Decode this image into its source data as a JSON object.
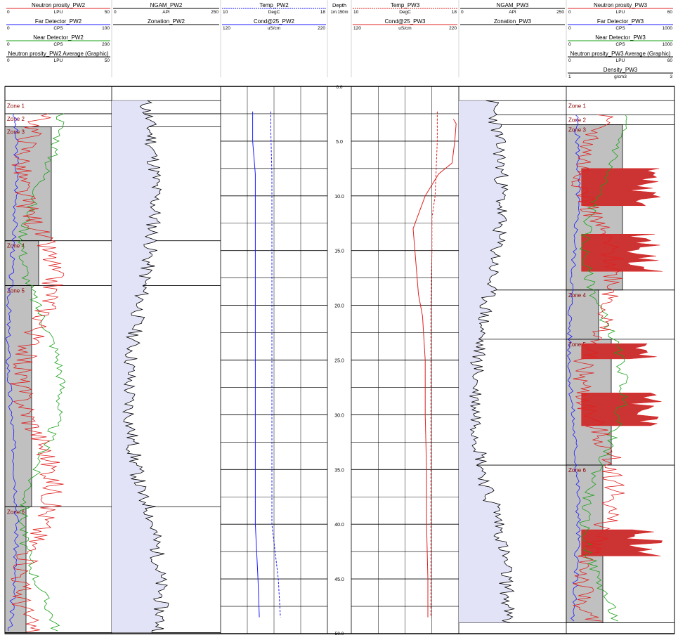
{
  "tracks": [
    {
      "id": "pw2-neutron",
      "header": [
        {
          "name": "Neutron prosity_PW2",
          "unit": "LPU",
          "min": "0",
          "max": "50",
          "color": "#e02020"
        },
        {
          "name": "Far Detector_PW2",
          "unit": "CPS",
          "min": "0",
          "max": "100",
          "color": "#1a1aff"
        },
        {
          "name": "Near Detector_PW2",
          "unit": "CPS",
          "min": "0",
          "max": "200",
          "color": "#19a019"
        },
        {
          "name": "Neutron prosity_PW2 Average (Graphic)",
          "unit": "LPU",
          "min": "0",
          "max": "50",
          "color": "#000000"
        }
      ]
    },
    {
      "id": "pw2-ngam",
      "header": [
        {
          "name": "NGAM_PW2",
          "unit": "API",
          "min": "0",
          "max": "250",
          "color": "#000000"
        },
        {
          "name": "Zonation_PW2",
          "unit": "",
          "min": "",
          "max": "",
          "color": "#000000"
        }
      ]
    },
    {
      "id": "pw2-temp",
      "header": [
        {
          "name": "Temp_PW2",
          "unit": "DegC",
          "min": "10",
          "max": "18",
          "color": "#1a1aff"
        },
        {
          "name": "Cond@25_PW2",
          "unit": "uS/cm",
          "min": "120",
          "max": "220",
          "color": "#1a1aff"
        }
      ]
    },
    {
      "id": "depth",
      "header": [
        {
          "name": "Depth",
          "unit": "1m:150m",
          "min": "",
          "max": "",
          "color": "#000000"
        }
      ]
    },
    {
      "id": "pw3-temp",
      "header": [
        {
          "name": "Temp_PW3",
          "unit": "DegC",
          "min": "10",
          "max": "18",
          "color": "#e02020"
        },
        {
          "name": "Cond@25_PW3",
          "unit": "uS/cm",
          "min": "120",
          "max": "220",
          "color": "#e02020"
        }
      ]
    },
    {
      "id": "pw3-ngam",
      "header": [
        {
          "name": "NGAM_PW3",
          "unit": "API",
          "min": "0",
          "max": "250",
          "color": "#000000"
        },
        {
          "name": "Zonation_PW3",
          "unit": "",
          "min": "",
          "max": "",
          "color": "#000000"
        }
      ]
    },
    {
      "id": "pw3-neutron",
      "header": [
        {
          "name": "Neutron prosity_PW3",
          "unit": "LPU",
          "min": "0",
          "max": "60",
          "color": "#e02020"
        },
        {
          "name": "Far Detector_PW3",
          "unit": "CPS",
          "min": "0",
          "max": "1000",
          "color": "#1a1aff"
        },
        {
          "name": "Near Detector_PW3",
          "unit": "CPS",
          "min": "0",
          "max": "1000",
          "color": "#19a019"
        },
        {
          "name": "Neutron prosity_PW3 Average (Graphic)",
          "unit": "LPU",
          "min": "0",
          "max": "60",
          "color": "#000000"
        },
        {
          "name": "Density_PW3",
          "unit": "g/cm3",
          "min": "1",
          "max": "3",
          "color": "#000000"
        }
      ]
    }
  ],
  "chart_data": {
    "type": "well-log",
    "depth_axis": {
      "unit": "m",
      "scale": "1m:150m",
      "range": [
        0,
        50
      ],
      "ticks": [
        5.0,
        10.0,
        15.0,
        20.0,
        25.0,
        30.0,
        35.0,
        40.0,
        45.0
      ],
      "top_label": "0.0",
      "bottom_label": "50.0"
    },
    "zonation_pw2": [
      {
        "name": "Zone 1",
        "top": 1.3,
        "bottom": 2.5
      },
      {
        "name": "Zone 2",
        "top": 2.5,
        "bottom": 3.7
      },
      {
        "name": "Zone 3",
        "top": 3.7,
        "bottom": 14.1
      },
      {
        "name": "Zone 4",
        "top": 14.1,
        "bottom": 18.2
      },
      {
        "name": "Zone 5",
        "top": 18.2,
        "bottom": 38.4
      },
      {
        "name": "Zone 6",
        "top": 38.4,
        "bottom": 49.9
      }
    ],
    "zonation_pw3": [
      {
        "name": "Zone 1",
        "top": 1.3,
        "bottom": 2.6
      },
      {
        "name": "Zone 2",
        "top": 2.6,
        "bottom": 3.5
      },
      {
        "name": "Zone 3",
        "top": 3.5,
        "bottom": 18.6
      },
      {
        "name": "Zone 4",
        "top": 18.6,
        "bottom": 23.1
      },
      {
        "name": "Zone 5",
        "top": 23.1,
        "bottom": 34.6
      },
      {
        "name": "Zone 6",
        "top": 34.6,
        "bottom": 49.0
      }
    ],
    "temp_pw2": {
      "depth": [
        2.3,
        5,
        8,
        10,
        15,
        20,
        25,
        30,
        35,
        40,
        45,
        48.5
      ],
      "values": [
        12.4,
        12.4,
        12.6,
        12.6,
        12.6,
        12.6,
        12.6,
        12.6,
        12.6,
        12.6,
        12.8,
        12.9
      ]
    },
    "cond_pw2": {
      "depth": [
        2.3,
        4,
        8,
        10,
        15,
        20,
        25,
        30,
        35,
        40,
        45,
        48.5
      ],
      "values": [
        167,
        167,
        168,
        168,
        168,
        168,
        168,
        168,
        168,
        168,
        174,
        176
      ]
    },
    "temp_pw3": {
      "depth": [
        3.0,
        3.4,
        5,
        7,
        8,
        10,
        13,
        16,
        19,
        21,
        25,
        30,
        35,
        40,
        45,
        48.5
      ],
      "values": [
        17.6,
        17.8,
        17.7,
        17.5,
        16.5,
        15.5,
        14.6,
        14.8,
        15.0,
        15.3,
        15.5,
        15.5,
        15.6,
        15.6,
        15.7,
        15.7
      ]
    },
    "cond_pw3": {
      "depth": [
        2.3,
        5,
        10,
        12,
        15,
        20,
        30,
        40,
        48.5
      ],
      "values": [
        200,
        200,
        198,
        195,
        195,
        194,
        194,
        194,
        194
      ]
    }
  }
}
